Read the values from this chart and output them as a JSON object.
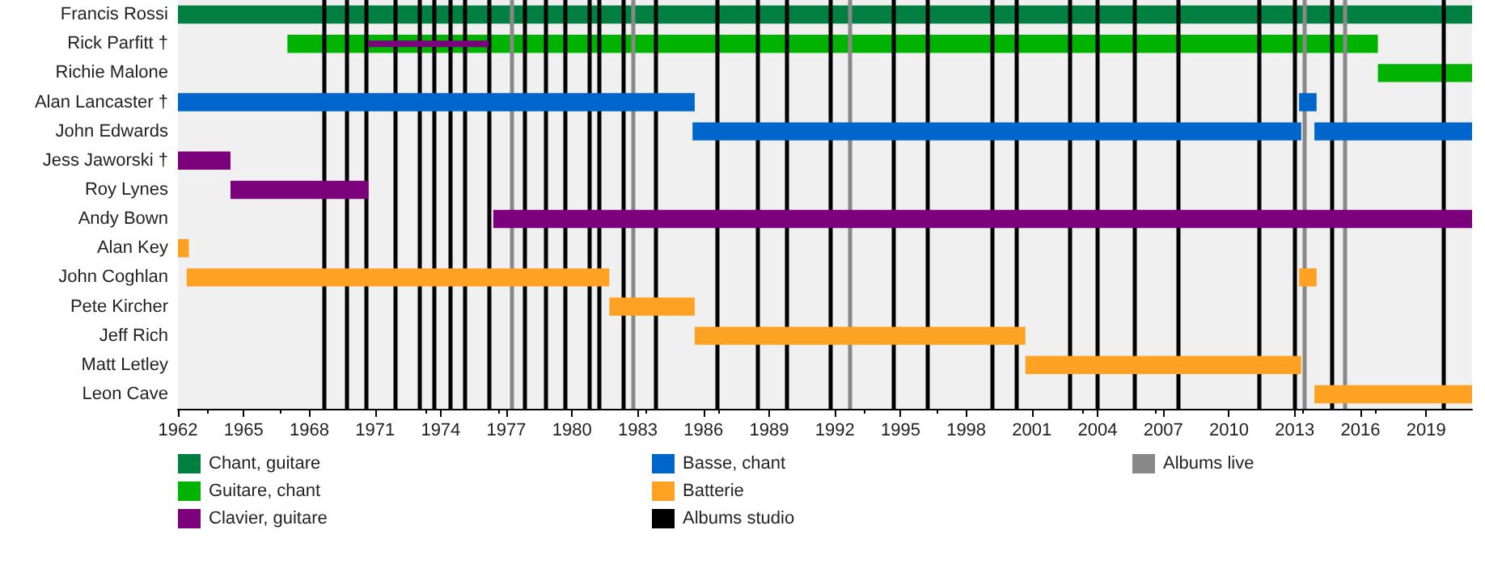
{
  "chart_data": {
    "type": "bar",
    "orientation": "horizontal",
    "legend": "bottom",
    "categories": [
      "Francis Rossi",
      "Rick Parfitt †",
      "Richie Malone",
      "Alan Lancaster †",
      "John Edwards",
      "Jess Jaworski †",
      "Roy Lynes",
      "Andy Bown",
      "Alan Key",
      "John Coghlan",
      "Pete Kircher",
      "Jeff Rich",
      "Matt Letley",
      "Leon Cave"
    ],
    "xlim": [
      1962,
      2021.1
    ],
    "xticks": [
      1962,
      1965,
      1968,
      1971,
      1974,
      1977,
      1980,
      1983,
      1986,
      1989,
      1992,
      1995,
      1998,
      2001,
      2004,
      2007,
      2010,
      2013,
      2016,
      2019
    ],
    "series": [
      {
        "name": "Chant, guitare",
        "color": "#008040",
        "base": [
          1962,
          null,
          null,
          null,
          null,
          null,
          null,
          null,
          null,
          null,
          null,
          null,
          null,
          null
        ],
        "values": [
          59.1,
          null,
          null,
          null,
          null,
          null,
          null,
          null,
          null,
          null,
          null,
          null,
          null,
          null
        ]
      },
      {
        "name": "Guitare, chant",
        "color": "#00b300",
        "base": [
          null,
          1967.0,
          2016.8,
          null,
          null,
          null,
          null,
          null,
          null,
          null,
          null,
          null,
          null,
          null
        ],
        "values": [
          null,
          49.8,
          4.3,
          null,
          null,
          null,
          null,
          null,
          null,
          null,
          null,
          null,
          null,
          null
        ]
      },
      {
        "name": "Clavier, guitare",
        "color": "#7b007b",
        "base": [
          null,
          null,
          null,
          null,
          null,
          1962,
          1964.4,
          1976.4,
          null,
          null,
          null,
          null,
          null,
          null
        ],
        "values": [
          null,
          null,
          null,
          null,
          null,
          2.4,
          6.3,
          44.7,
          null,
          null,
          null,
          null,
          null,
          null
        ]
      },
      {
        "name": "Basse, chant",
        "color": "#0066cc",
        "base": [
          null,
          null,
          null,
          1962,
          1985.5,
          null,
          null,
          null,
          null,
          null,
          null,
          null,
          null,
          null
        ],
        "values": [
          null,
          null,
          null,
          23.6,
          27.8,
          null,
          null,
          null,
          null,
          null,
          null,
          null,
          null,
          null
        ]
      },
      {
        "name": "Batterie",
        "color": "#ffa224",
        "base": [
          null,
          null,
          null,
          null,
          null,
          null,
          null,
          null,
          1962,
          1962.4,
          1981.7,
          1985.6,
          2000.7,
          2013.9
        ],
        "values": [
          null,
          null,
          null,
          null,
          null,
          null,
          null,
          null,
          0.5,
          19.3,
          3.9,
          15.1,
          12.6,
          7.2
        ]
      },
      {
        "color": "#7b007b",
        "base": [
          null,
          1970.7,
          null,
          null,
          null,
          null,
          null,
          null,
          null,
          null,
          null,
          null,
          null,
          null
        ],
        "values": [
          null,
          5.5,
          null,
          null,
          null,
          null,
          null,
          null,
          null,
          null,
          null,
          null,
          null,
          null
        ]
      },
      {
        "color": "#0066cc",
        "base": [
          null,
          null,
          null,
          2013.2,
          2013.9,
          null,
          null,
          null,
          null,
          null,
          null,
          null,
          null,
          null
        ],
        "values": [
          null,
          null,
          null,
          0.8,
          7.2,
          null,
          null,
          null,
          null,
          null,
          null,
          null,
          null,
          null
        ]
      },
      {
        "color": "#ffa224",
        "base": [
          null,
          null,
          null,
          null,
          null,
          null,
          null,
          null,
          null,
          2013.2,
          null,
          null,
          null,
          null
        ],
        "values": [
          null,
          null,
          null,
          null,
          null,
          null,
          null,
          null,
          null,
          0.8,
          null,
          null,
          null,
          null
        ]
      }
    ],
    "ref_lines": [
      {
        "axis": "x",
        "value": 1968.7,
        "color": "#000000",
        "label": "Albums studio"
      },
      {
        "axis": "x",
        "value": 1969.7,
        "color": "#000000"
      },
      {
        "axis": "x",
        "value": 1970.6,
        "color": "#000000"
      },
      {
        "axis": "x",
        "value": 1971.9,
        "color": "#000000"
      },
      {
        "axis": "x",
        "value": 1973.0,
        "color": "#000000"
      },
      {
        "axis": "x",
        "value": 1973.7,
        "color": "#000000"
      },
      {
        "axis": "x",
        "value": 1974.4,
        "color": "#000000"
      },
      {
        "axis": "x",
        "value": 1975.1,
        "color": "#000000"
      },
      {
        "axis": "x",
        "value": 1976.2,
        "color": "#000000"
      },
      {
        "axis": "x",
        "value": 1977.2,
        "color": "#888888",
        "label": "Albums live"
      },
      {
        "axis": "x",
        "value": 1977.8,
        "color": "#000000"
      },
      {
        "axis": "x",
        "value": 1978.8,
        "color": "#000000"
      },
      {
        "axis": "x",
        "value": 1979.7,
        "color": "#000000"
      },
      {
        "axis": "x",
        "value": 1980.8,
        "color": "#000000"
      },
      {
        "axis": "x",
        "value": 1981.2,
        "color": "#000000"
      },
      {
        "axis": "x",
        "value": 1982.3,
        "color": "#000000"
      },
      {
        "axis": "x",
        "value": 1982.8,
        "color": "#888888"
      },
      {
        "axis": "x",
        "value": 1983.8,
        "color": "#000000"
      },
      {
        "axis": "x",
        "value": 1986.6,
        "color": "#000000"
      },
      {
        "axis": "x",
        "value": 1988.5,
        "color": "#000000"
      },
      {
        "axis": "x",
        "value": 1989.8,
        "color": "#000000"
      },
      {
        "axis": "x",
        "value": 1991.8,
        "color": "#000000"
      },
      {
        "axis": "x",
        "value": 1992.7,
        "color": "#888888"
      },
      {
        "axis": "x",
        "value": 1994.7,
        "color": "#000000"
      },
      {
        "axis": "x",
        "value": 1996.2,
        "color": "#000000"
      },
      {
        "axis": "x",
        "value": 1999.2,
        "color": "#000000"
      },
      {
        "axis": "x",
        "value": 2000.3,
        "color": "#000000"
      },
      {
        "axis": "x",
        "value": 2002.7,
        "color": "#000000"
      },
      {
        "axis": "x",
        "value": 2004.0,
        "color": "#000000"
      },
      {
        "axis": "x",
        "value": 2005.7,
        "color": "#000000"
      },
      {
        "axis": "x",
        "value": 2007.7,
        "color": "#000000"
      },
      {
        "axis": "x",
        "value": 2011.4,
        "color": "#000000"
      },
      {
        "axis": "x",
        "value": 2013.0,
        "color": "#000000"
      },
      {
        "axis": "x",
        "value": 2013.4,
        "color": "#888888"
      },
      {
        "axis": "x",
        "value": 2014.7,
        "color": "#000000"
      },
      {
        "axis": "x",
        "value": 2015.3,
        "color": "#888888"
      },
      {
        "axis": "x",
        "value": 2019.8,
        "color": "#000000"
      }
    ]
  }
}
